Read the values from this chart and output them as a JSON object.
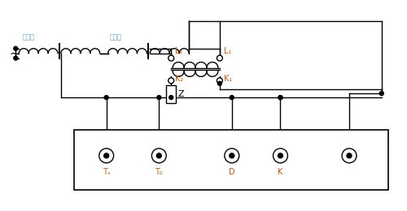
{
  "bg_color": "#ffffff",
  "line_color": "#000000",
  "blue_color": "#5B9BD5",
  "orange_color": "#C55A11",
  "label_diaoYaQi": "调压器",
  "label_shengLiuQi": "升流器",
  "label_L2": "L₂",
  "label_L1": "L₁",
  "label_K2": "K₂",
  "label_K1": "K₁",
  "label_Z": "Z",
  "label_Tx": "Tₓ",
  "label_T0": "T₀",
  "label_D": "D",
  "label_K": "K"
}
